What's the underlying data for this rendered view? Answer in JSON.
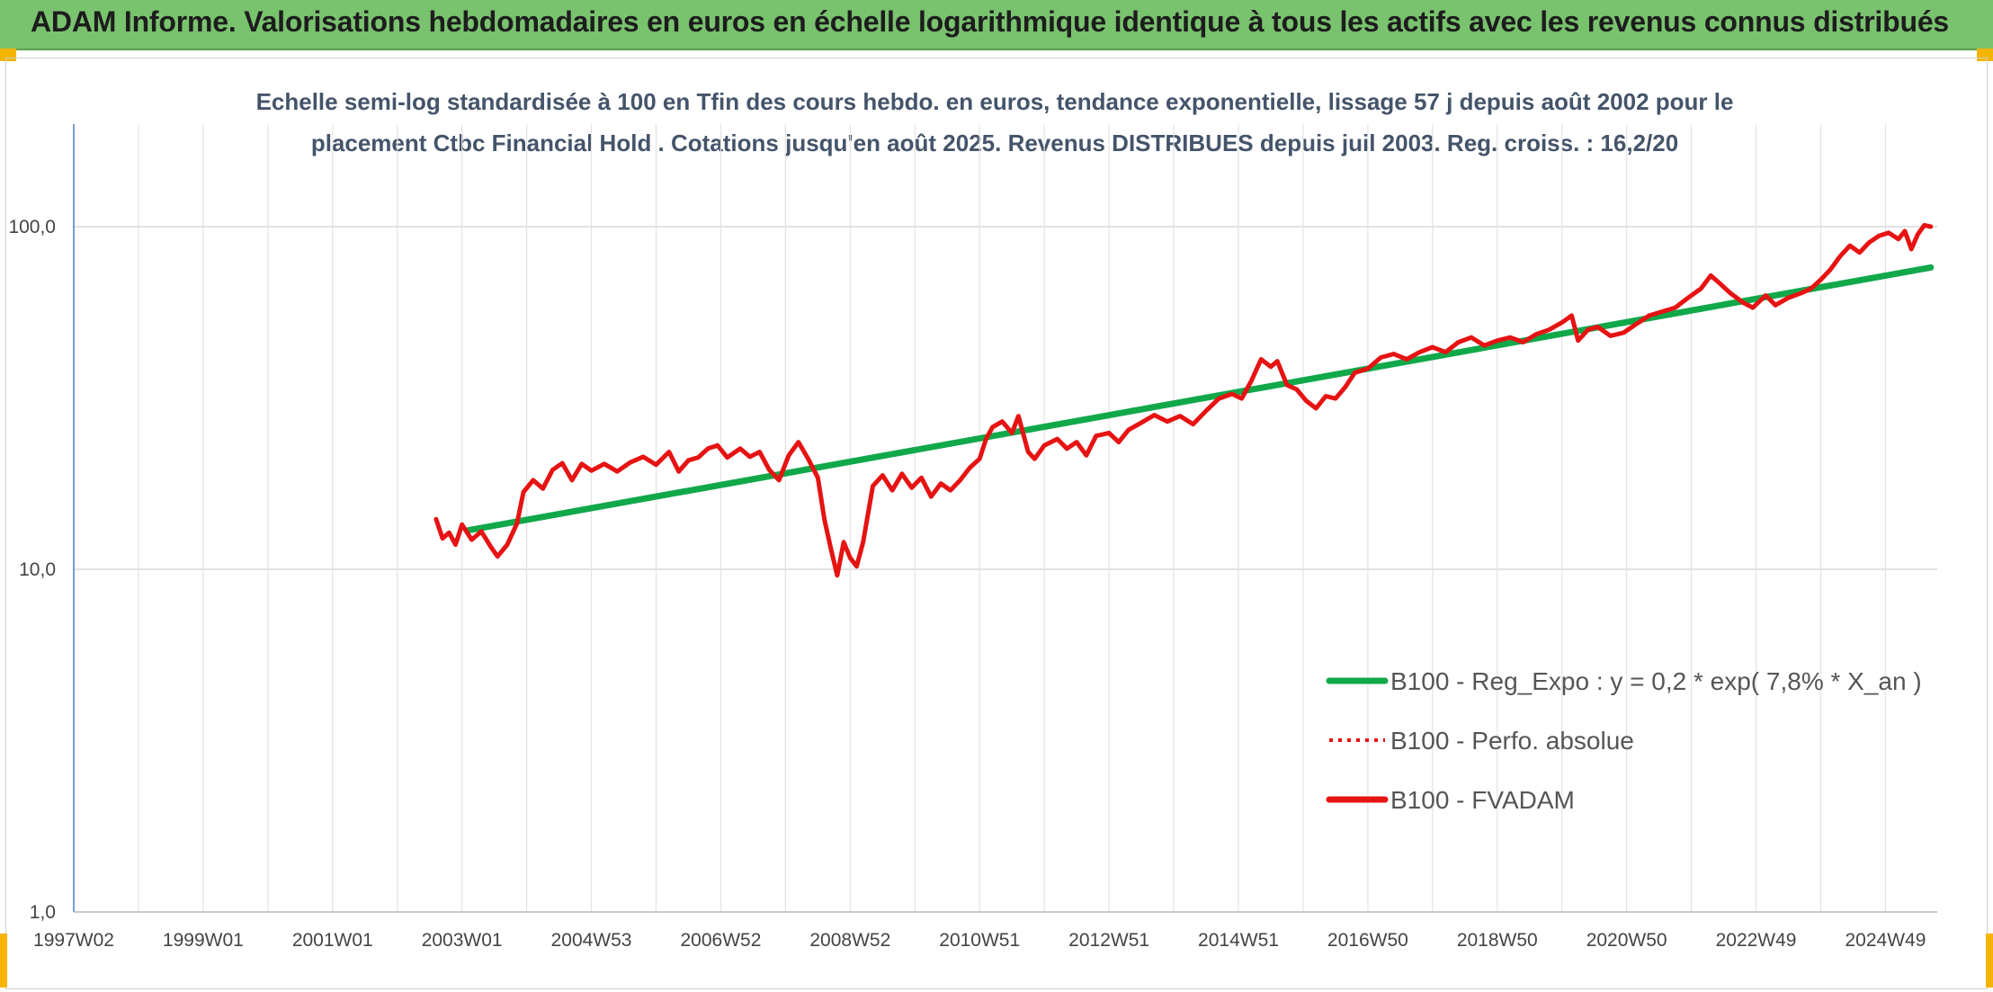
{
  "header": {
    "title": "ADAM Informe. Valorisations hebdomadaires en euros en échelle logarithmique identique à tous les actifs avec les revenus connus distribués"
  },
  "colors": {
    "header_bg": "#79c26e",
    "accent": "#f5b400",
    "trend": "#11a84a",
    "fvadam": "#e61313",
    "perfo": "#e61313"
  },
  "chart_data": {
    "type": "line",
    "y_scale": "log",
    "ylim": [
      1,
      200
    ],
    "grid": true,
    "legend_position": "bottom-right",
    "title_lines": [
      "Echelle semi-log standardisée à 100 en Tfin des cours hebdo. en euros, tendance exponentielle, lissage 57 j depuis août 2002 pour le",
      "placement Ctbc Financial Hold . Cotations jusqu'en août 2025. Revenus DISTRIBUES depuis juil 2003. Reg. croiss. : 16,2/20"
    ],
    "y_ticks": [
      {
        "value": 1,
        "label": "1,0"
      },
      {
        "value": 10,
        "label": "10,0"
      },
      {
        "value": 100,
        "label": "100,0"
      }
    ],
    "x_ticks": [
      {
        "year": 1997.0,
        "label": "1997W02"
      },
      {
        "year": 1999.0,
        "label": "1999W01"
      },
      {
        "year": 2001.0,
        "label": "2001W01"
      },
      {
        "year": 2003.0,
        "label": "2003W01"
      },
      {
        "year": 2005.0,
        "label": "2004W53"
      },
      {
        "year": 2007.0,
        "label": "2006W52"
      },
      {
        "year": 2009.0,
        "label": "2008W52"
      },
      {
        "year": 2011.0,
        "label": "2010W51"
      },
      {
        "year": 2013.0,
        "label": "2012W51"
      },
      {
        "year": 2015.0,
        "label": "2014W51"
      },
      {
        "year": 2017.0,
        "label": "2016W50"
      },
      {
        "year": 2019.0,
        "label": "2018W50"
      },
      {
        "year": 2021.0,
        "label": "2020W50"
      },
      {
        "year": 2023.0,
        "label": "2022W49"
      },
      {
        "year": 2025.0,
        "label": "2024W49"
      }
    ],
    "x_range": [
      1997.0,
      2025.8
    ],
    "series": [
      {
        "name": "B100 - Reg_Expo : y = 0,2 * exp( 7,8% *  X_an )",
        "style": "solid",
        "color": "#11a84a",
        "points": [
          [
            2003.1,
            13.0
          ],
          [
            2025.7,
            76.0
          ]
        ]
      },
      {
        "name": "B100 - Perfo. absolue",
        "style": "dotted",
        "color": "#e61313",
        "points": []
      },
      {
        "name": "B100 - FVADAM",
        "style": "solid",
        "color": "#e61313",
        "points": [
          [
            2002.6,
            14.0
          ],
          [
            2002.7,
            12.3
          ],
          [
            2002.8,
            12.8
          ],
          [
            2002.9,
            11.8
          ],
          [
            2003.0,
            13.5
          ],
          [
            2003.15,
            12.2
          ],
          [
            2003.3,
            12.9
          ],
          [
            2003.45,
            11.6
          ],
          [
            2003.55,
            10.9
          ],
          [
            2003.7,
            11.8
          ],
          [
            2003.85,
            13.6
          ],
          [
            2003.95,
            16.8
          ],
          [
            2004.1,
            18.2
          ],
          [
            2004.25,
            17.2
          ],
          [
            2004.4,
            19.5
          ],
          [
            2004.55,
            20.4
          ],
          [
            2004.7,
            18.2
          ],
          [
            2004.85,
            20.3
          ],
          [
            2005.0,
            19.4
          ],
          [
            2005.2,
            20.3
          ],
          [
            2005.4,
            19.3
          ],
          [
            2005.6,
            20.5
          ],
          [
            2005.8,
            21.3
          ],
          [
            2006.0,
            20.2
          ],
          [
            2006.2,
            22.0
          ],
          [
            2006.35,
            19.3
          ],
          [
            2006.5,
            20.8
          ],
          [
            2006.65,
            21.2
          ],
          [
            2006.8,
            22.5
          ],
          [
            2006.95,
            23.0
          ],
          [
            2007.1,
            21.2
          ],
          [
            2007.3,
            22.5
          ],
          [
            2007.45,
            21.3
          ],
          [
            2007.6,
            22.0
          ],
          [
            2007.75,
            19.5
          ],
          [
            2007.9,
            18.2
          ],
          [
            2008.05,
            21.5
          ],
          [
            2008.2,
            23.5
          ],
          [
            2008.35,
            21.0
          ],
          [
            2008.5,
            18.5
          ],
          [
            2008.6,
            14.0
          ],
          [
            2008.7,
            11.5
          ],
          [
            2008.8,
            9.6
          ],
          [
            2008.9,
            12.0
          ],
          [
            2009.0,
            10.8
          ],
          [
            2009.1,
            10.2
          ],
          [
            2009.2,
            12.0
          ],
          [
            2009.35,
            17.5
          ],
          [
            2009.5,
            18.8
          ],
          [
            2009.65,
            17.0
          ],
          [
            2009.8,
            19.0
          ],
          [
            2009.95,
            17.3
          ],
          [
            2010.1,
            18.5
          ],
          [
            2010.25,
            16.3
          ],
          [
            2010.4,
            17.8
          ],
          [
            2010.55,
            17.0
          ],
          [
            2010.7,
            18.2
          ],
          [
            2010.85,
            19.8
          ],
          [
            2011.0,
            21.0
          ],
          [
            2011.1,
            24.0
          ],
          [
            2011.2,
            26.0
          ],
          [
            2011.35,
            27.0
          ],
          [
            2011.5,
            25.0
          ],
          [
            2011.6,
            28.0
          ],
          [
            2011.75,
            22.0
          ],
          [
            2011.85,
            21.0
          ],
          [
            2012.0,
            23.0
          ],
          [
            2012.2,
            24.0
          ],
          [
            2012.35,
            22.5
          ],
          [
            2012.5,
            23.5
          ],
          [
            2012.65,
            21.5
          ],
          [
            2012.8,
            24.5
          ],
          [
            2013.0,
            25.0
          ],
          [
            2013.15,
            23.5
          ],
          [
            2013.3,
            25.5
          ],
          [
            2013.5,
            26.8
          ],
          [
            2013.7,
            28.2
          ],
          [
            2013.9,
            27.0
          ],
          [
            2014.1,
            28.0
          ],
          [
            2014.3,
            26.5
          ],
          [
            2014.5,
            29.0
          ],
          [
            2014.7,
            31.5
          ],
          [
            2014.9,
            32.5
          ],
          [
            2015.05,
            31.5
          ],
          [
            2015.2,
            35.5
          ],
          [
            2015.35,
            41.0
          ],
          [
            2015.5,
            39.0
          ],
          [
            2015.6,
            40.5
          ],
          [
            2015.75,
            34.5
          ],
          [
            2015.9,
            33.5
          ],
          [
            2016.05,
            31.0
          ],
          [
            2016.2,
            29.5
          ],
          [
            2016.35,
            32.0
          ],
          [
            2016.5,
            31.5
          ],
          [
            2016.65,
            34.0
          ],
          [
            2016.8,
            37.5
          ],
          [
            2017.0,
            38.5
          ],
          [
            2017.2,
            41.5
          ],
          [
            2017.4,
            42.5
          ],
          [
            2017.6,
            41.0
          ],
          [
            2017.8,
            43.0
          ],
          [
            2018.0,
            44.5
          ],
          [
            2018.2,
            43.0
          ],
          [
            2018.4,
            46.0
          ],
          [
            2018.6,
            47.5
          ],
          [
            2018.8,
            45.0
          ],
          [
            2019.0,
            46.5
          ],
          [
            2019.2,
            47.5
          ],
          [
            2019.4,
            46.0
          ],
          [
            2019.6,
            48.5
          ],
          [
            2019.8,
            50.0
          ],
          [
            2020.0,
            52.5
          ],
          [
            2020.15,
            55.0
          ],
          [
            2020.25,
            46.5
          ],
          [
            2020.4,
            50.0
          ],
          [
            2020.55,
            51.0
          ],
          [
            2020.75,
            48.0
          ],
          [
            2020.95,
            49.0
          ],
          [
            2021.15,
            52.0
          ],
          [
            2021.35,
            55.0
          ],
          [
            2021.55,
            56.5
          ],
          [
            2021.75,
            58.0
          ],
          [
            2021.95,
            62.0
          ],
          [
            2022.15,
            66.0
          ],
          [
            2022.3,
            72.0
          ],
          [
            2022.45,
            68.0
          ],
          [
            2022.6,
            64.0
          ],
          [
            2022.8,
            60.0
          ],
          [
            2022.95,
            58.0
          ],
          [
            2023.15,
            63.0
          ],
          [
            2023.3,
            59.0
          ],
          [
            2023.5,
            62.0
          ],
          [
            2023.7,
            64.0
          ],
          [
            2023.85,
            66.0
          ],
          [
            2024.0,
            70.0
          ],
          [
            2024.15,
            75.0
          ],
          [
            2024.3,
            82.0
          ],
          [
            2024.45,
            88.0
          ],
          [
            2024.6,
            84.0
          ],
          [
            2024.75,
            90.0
          ],
          [
            2024.9,
            94.0
          ],
          [
            2025.05,
            96.0
          ],
          [
            2025.2,
            92.0
          ],
          [
            2025.3,
            97.0
          ],
          [
            2025.4,
            86.0
          ],
          [
            2025.5,
            95.0
          ],
          [
            2025.6,
            101.0
          ],
          [
            2025.7,
            100.0
          ]
        ]
      }
    ]
  }
}
